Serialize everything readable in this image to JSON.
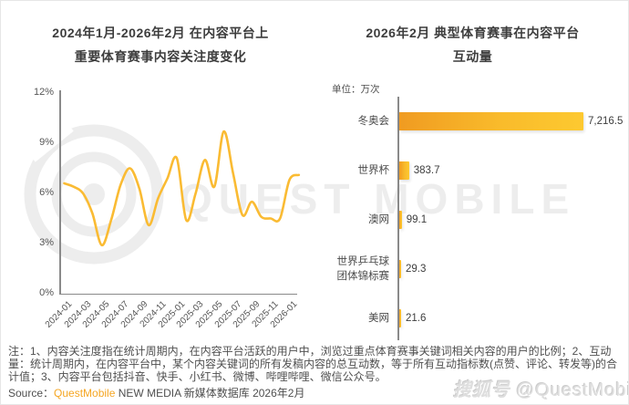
{
  "header": {
    "left_title_line1": "2024年1月-2026年2月 在内容平台上",
    "left_title_line2": "重要体育赛事内容关注度变化",
    "right_title_line1": "2026年2月 典型体育赛事在内容平台",
    "right_title_line2": "互动量",
    "unit_label": "单位：万次"
  },
  "chart_data": [
    {
      "type": "line",
      "title": "2024年1月-2026年2月 在内容平台上重要体育赛事内容关注度变化",
      "x": [
        "2024-01",
        "2024-02",
        "2024-03",
        "2024-04",
        "2024-05",
        "2024-06",
        "2024-07",
        "2024-08",
        "2024-09",
        "2024-10",
        "2024-11",
        "2024-12",
        "2025-01",
        "2025-02",
        "2025-03",
        "2025-04",
        "2025-05",
        "2025-06",
        "2025-07",
        "2025-08",
        "2025-09",
        "2025-10",
        "2025-11",
        "2025-12",
        "2026-01",
        "2026-02"
      ],
      "values": [
        6.6,
        6.4,
        6.0,
        4.8,
        2.9,
        4.4,
        6.5,
        7.5,
        6.3,
        4.1,
        5.7,
        6.9,
        8.1,
        4.4,
        6.0,
        8.0,
        6.4,
        9.7,
        7.2,
        4.7,
        5.5,
        4.6,
        4.5,
        4.5,
        6.8,
        7.1
      ],
      "unit": "%",
      "ylim": [
        0,
        12
      ],
      "y_tick_labels": [
        "0%",
        "3%",
        "6%",
        "9%",
        "12%"
      ],
      "x_tick_labels": [
        "2024-01",
        "2024-03",
        "2024-05",
        "2024-07",
        "2024-09",
        "2024-11",
        "2025-01",
        "2025-03",
        "2025-05",
        "2025-07",
        "2025-09",
        "2025-11",
        "2026-01"
      ],
      "grid": false,
      "legend": "none",
      "line_color": "#FABB33"
    },
    {
      "type": "bar",
      "orientation": "horizontal",
      "title": "2026年2月 典型体育赛事在内容平台互动量",
      "unit": "万次",
      "categories": [
        "冬奥会",
        "世界杯",
        "澳网",
        "世界乒乓球团体锦标赛",
        "美网"
      ],
      "category_lines": [
        [
          "冬奥会"
        ],
        [
          "世界杯"
        ],
        [
          "澳网"
        ],
        [
          "世界乒乓球",
          "团体锦标赛"
        ],
        [
          "美网"
        ]
      ],
      "values": [
        7216.5,
        383.7,
        99.1,
        29.3,
        21.6
      ],
      "value_labels": [
        "7,216.5",
        "383.7",
        "99.1",
        "29.3",
        "21.6"
      ],
      "xlim": [
        0,
        7216.5
      ],
      "bar_color_start": "#F09B21",
      "bar_color_end": "#FDC930"
    }
  ],
  "watermark": {
    "brand_text": "QUEST MOBILE",
    "badge_text": "搜狐号",
    "handle_text": "@QuestMobile"
  },
  "footer": {
    "note": "注：1、内容关注度指在统计周期内，在内容平台活跃的用户中，浏览过重点体育赛事关键词相关内容的用户的比例；2、互动量：统计周期内，在内容平台中，某个内容关键词的所有发稿内容的总互动数，等于所有互动指标数(点赞、评论、转发等)的合计值；3、内容平台包括抖音、快手、小红书、微博、哔哩哔哩、微信公众号。",
    "source_prefix": "Source：",
    "source_brand": "QuestMobile",
    "source_suffix": " NEW MEDIA 新媒体数据库 2026年2月"
  },
  "colors": {
    "line_yellow": "#FABB33",
    "bar_orange": "#F09B21",
    "bar_yellow": "#FDC930",
    "brand_orange": "#F5A623",
    "axis_gray": "#8a8a8a",
    "watermark_gray": "#ededed"
  }
}
